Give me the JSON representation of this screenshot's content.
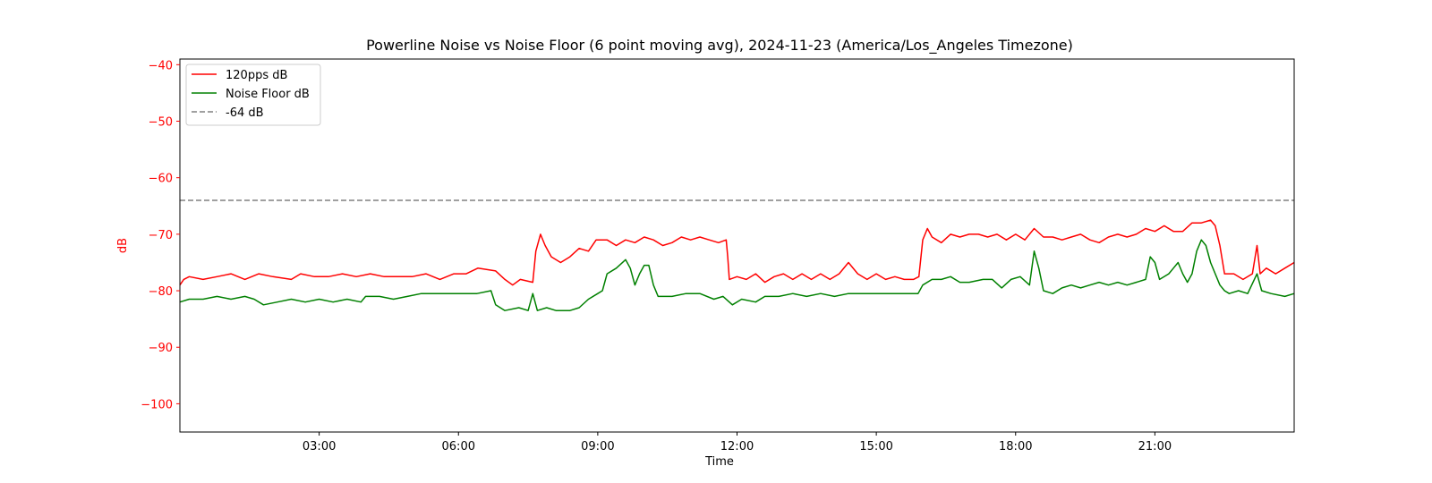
{
  "chart_data": {
    "type": "line",
    "title": "Powerline Noise vs Noise Floor (6 point moving avg), 2024-11-23 (America/Los_Angeles Timezone)",
    "xlabel": "Time",
    "ylabel": "dB",
    "x_unit": "time of day (HH:MM)",
    "xlim": [
      "00:00",
      "24:00"
    ],
    "ylim": [
      -105,
      -39
    ],
    "x_ticks": [
      "03:00",
      "06:00",
      "09:00",
      "12:00",
      "15:00",
      "18:00",
      "21:00"
    ],
    "y_ticks": [
      -40,
      -50,
      -60,
      -70,
      -80,
      -90,
      -100
    ],
    "grid": false,
    "legend_position": "top-left",
    "colors": {
      "red_series": "#ff0000",
      "green_series": "#008000",
      "reference": "#808080",
      "axis_text": "#ff0000"
    },
    "reference_line": {
      "name": "-64 dB",
      "y": -64,
      "style": "dashed"
    },
    "series": [
      {
        "name": "120pps dB",
        "color": "#ff0000",
        "points": [
          [
            "00:00",
            -79
          ],
          [
            "00:05",
            -78
          ],
          [
            "00:12",
            -77.5
          ],
          [
            "00:30",
            -78
          ],
          [
            "00:48",
            -77.5
          ],
          [
            "01:06",
            -77
          ],
          [
            "01:24",
            -78
          ],
          [
            "01:42",
            -77
          ],
          [
            "02:00",
            -77.5
          ],
          [
            "02:24",
            -78
          ],
          [
            "02:36",
            -77
          ],
          [
            "02:54",
            -77.5
          ],
          [
            "03:12",
            -77.5
          ],
          [
            "03:30",
            -77
          ],
          [
            "03:48",
            -77.5
          ],
          [
            "04:06",
            -77
          ],
          [
            "04:24",
            -77.5
          ],
          [
            "04:42",
            -77.5
          ],
          [
            "05:00",
            -77.5
          ],
          [
            "05:18",
            -77
          ],
          [
            "05:36",
            -78
          ],
          [
            "05:54",
            -77
          ],
          [
            "06:10",
            -77
          ],
          [
            "06:25",
            -76
          ],
          [
            "06:48",
            -76.5
          ],
          [
            "07:00",
            -78
          ],
          [
            "07:10",
            -79
          ],
          [
            "07:20",
            -78
          ],
          [
            "07:36",
            -78.5
          ],
          [
            "07:40",
            -73
          ],
          [
            "07:46",
            -70
          ],
          [
            "07:52",
            -72
          ],
          [
            "08:00",
            -74
          ],
          [
            "08:12",
            -75
          ],
          [
            "08:24",
            -74
          ],
          [
            "08:36",
            -72.5
          ],
          [
            "08:48",
            -73
          ],
          [
            "08:58",
            -71
          ],
          [
            "09:12",
            -71
          ],
          [
            "09:24",
            -72
          ],
          [
            "09:36",
            -71
          ],
          [
            "09:48",
            -71.5
          ],
          [
            "10:00",
            -70.5
          ],
          [
            "10:12",
            -71
          ],
          [
            "10:24",
            -72
          ],
          [
            "10:36",
            -71.5
          ],
          [
            "10:48",
            -70.5
          ],
          [
            "11:00",
            -71
          ],
          [
            "11:12",
            -70.5
          ],
          [
            "11:24",
            -71
          ],
          [
            "11:36",
            -71.5
          ],
          [
            "11:46",
            -71
          ],
          [
            "11:48",
            -74
          ],
          [
            "11:50",
            -78
          ],
          [
            "12:00",
            -77.5
          ],
          [
            "12:12",
            -78
          ],
          [
            "12:24",
            -77
          ],
          [
            "12:36",
            -78.5
          ],
          [
            "12:48",
            -77.5
          ],
          [
            "13:00",
            -77
          ],
          [
            "13:12",
            -78
          ],
          [
            "13:24",
            -77
          ],
          [
            "13:36",
            -78
          ],
          [
            "13:48",
            -77
          ],
          [
            "14:00",
            -78
          ],
          [
            "14:12",
            -77
          ],
          [
            "14:24",
            -75
          ],
          [
            "14:36",
            -77
          ],
          [
            "14:48",
            -78
          ],
          [
            "15:00",
            -77
          ],
          [
            "15:12",
            -78
          ],
          [
            "15:24",
            -77.5
          ],
          [
            "15:36",
            -78
          ],
          [
            "15:48",
            -78
          ],
          [
            "15:55",
            -77.5
          ],
          [
            "16:00",
            -71
          ],
          [
            "16:06",
            -69
          ],
          [
            "16:12",
            -70.5
          ],
          [
            "16:24",
            -71.5
          ],
          [
            "16:36",
            -70
          ],
          [
            "16:48",
            -70.5
          ],
          [
            "17:00",
            -70
          ],
          [
            "17:12",
            -70
          ],
          [
            "17:24",
            -70.5
          ],
          [
            "17:36",
            -70
          ],
          [
            "17:48",
            -71
          ],
          [
            "18:00",
            -70
          ],
          [
            "18:12",
            -71
          ],
          [
            "18:24",
            -69
          ],
          [
            "18:36",
            -70.5
          ],
          [
            "18:48",
            -70.5
          ],
          [
            "19:00",
            -71
          ],
          [
            "19:12",
            -70.5
          ],
          [
            "19:24",
            -70
          ],
          [
            "19:36",
            -71
          ],
          [
            "19:48",
            -71.5
          ],
          [
            "20:00",
            -70.5
          ],
          [
            "20:12",
            -70
          ],
          [
            "20:24",
            -70.5
          ],
          [
            "20:36",
            -70
          ],
          [
            "20:48",
            -69
          ],
          [
            "21:00",
            -69.5
          ],
          [
            "21:12",
            -68.5
          ],
          [
            "21:24",
            -69.5
          ],
          [
            "21:36",
            -69.5
          ],
          [
            "21:48",
            -68
          ],
          [
            "22:00",
            -68
          ],
          [
            "22:12",
            -67.5
          ],
          [
            "22:18",
            -68.5
          ],
          [
            "22:24",
            -72
          ],
          [
            "22:30",
            -77
          ],
          [
            "22:42",
            -77
          ],
          [
            "22:54",
            -78
          ],
          [
            "23:06",
            -77
          ],
          [
            "23:12",
            -72
          ],
          [
            "23:16",
            -77
          ],
          [
            "23:24",
            -76
          ],
          [
            "23:36",
            -77
          ],
          [
            "23:48",
            -76
          ],
          [
            "24:00",
            -75
          ]
        ]
      },
      {
        "name": "Noise Floor dB",
        "color": "#008000",
        "points": [
          [
            "00:00",
            -82
          ],
          [
            "00:12",
            -81.5
          ],
          [
            "00:30",
            -81.5
          ],
          [
            "00:48",
            -81
          ],
          [
            "01:06",
            -81.5
          ],
          [
            "01:24",
            -81
          ],
          [
            "01:36",
            -81.5
          ],
          [
            "01:48",
            -82.5
          ],
          [
            "02:06",
            -82
          ],
          [
            "02:24",
            -81.5
          ],
          [
            "02:42",
            -82
          ],
          [
            "03:00",
            -81.5
          ],
          [
            "03:18",
            -82
          ],
          [
            "03:36",
            -81.5
          ],
          [
            "03:54",
            -82
          ],
          [
            "04:00",
            -81
          ],
          [
            "04:18",
            -81
          ],
          [
            "04:36",
            -81.5
          ],
          [
            "04:54",
            -81
          ],
          [
            "05:12",
            -80.5
          ],
          [
            "05:30",
            -80.5
          ],
          [
            "05:48",
            -80.5
          ],
          [
            "06:06",
            -80.5
          ],
          [
            "06:24",
            -80.5
          ],
          [
            "06:42",
            -80
          ],
          [
            "06:48",
            -82.5
          ],
          [
            "07:00",
            -83.5
          ],
          [
            "07:18",
            -83
          ],
          [
            "07:30",
            -83.5
          ],
          [
            "07:36",
            -80.5
          ],
          [
            "07:42",
            -83.5
          ],
          [
            "07:54",
            -83
          ],
          [
            "08:06",
            -83.5
          ],
          [
            "08:24",
            -83.5
          ],
          [
            "08:36",
            -83
          ],
          [
            "08:48",
            -81.5
          ],
          [
            "09:00",
            -80.5
          ],
          [
            "09:06",
            -80
          ],
          [
            "09:12",
            -77
          ],
          [
            "09:24",
            -76
          ],
          [
            "09:36",
            -74.5
          ],
          [
            "09:42",
            -76
          ],
          [
            "09:48",
            -79
          ],
          [
            "09:54",
            -77
          ],
          [
            "10:00",
            -75.5
          ],
          [
            "10:06",
            -75.5
          ],
          [
            "10:12",
            -79
          ],
          [
            "10:18",
            -81
          ],
          [
            "10:36",
            -81
          ],
          [
            "10:54",
            -80.5
          ],
          [
            "11:12",
            -80.5
          ],
          [
            "11:30",
            -81.5
          ],
          [
            "11:42",
            -81
          ],
          [
            "11:54",
            -82.5
          ],
          [
            "12:06",
            -81.5
          ],
          [
            "12:24",
            -82
          ],
          [
            "12:36",
            -81
          ],
          [
            "12:54",
            -81
          ],
          [
            "13:12",
            -80.5
          ],
          [
            "13:30",
            -81
          ],
          [
            "13:48",
            -80.5
          ],
          [
            "14:06",
            -81
          ],
          [
            "14:24",
            -80.5
          ],
          [
            "14:42",
            -80.5
          ],
          [
            "15:00",
            -80.5
          ],
          [
            "15:18",
            -80.5
          ],
          [
            "15:36",
            -80.5
          ],
          [
            "15:54",
            -80.5
          ],
          [
            "16:00",
            -79
          ],
          [
            "16:12",
            -78
          ],
          [
            "16:24",
            -78
          ],
          [
            "16:36",
            -77.5
          ],
          [
            "16:48",
            -78.5
          ],
          [
            "17:00",
            -78.5
          ],
          [
            "17:18",
            -78
          ],
          [
            "17:30",
            -78
          ],
          [
            "17:42",
            -79.5
          ],
          [
            "17:54",
            -78
          ],
          [
            "18:06",
            -77.5
          ],
          [
            "18:18",
            -79
          ],
          [
            "18:24",
            -73
          ],
          [
            "18:30",
            -76
          ],
          [
            "18:36",
            -80
          ],
          [
            "18:48",
            -80.5
          ],
          [
            "19:00",
            -79.5
          ],
          [
            "19:12",
            -79
          ],
          [
            "19:24",
            -79.5
          ],
          [
            "19:36",
            -79
          ],
          [
            "19:48",
            -78.5
          ],
          [
            "20:00",
            -79
          ],
          [
            "20:12",
            -78.5
          ],
          [
            "20:24",
            -79
          ],
          [
            "20:36",
            -78.5
          ],
          [
            "20:48",
            -78
          ],
          [
            "20:54",
            -74
          ],
          [
            "21:00",
            -75
          ],
          [
            "21:06",
            -78
          ],
          [
            "21:18",
            -77
          ],
          [
            "21:24",
            -76
          ],
          [
            "21:30",
            -75
          ],
          [
            "21:36",
            -77
          ],
          [
            "21:42",
            -78.5
          ],
          [
            "21:48",
            -77
          ],
          [
            "21:54",
            -73
          ],
          [
            "22:00",
            -71
          ],
          [
            "22:06",
            -72
          ],
          [
            "22:12",
            -75
          ],
          [
            "22:24",
            -79
          ],
          [
            "22:30",
            -80
          ],
          [
            "22:36",
            -80.5
          ],
          [
            "22:48",
            -80
          ],
          [
            "23:00",
            -80.5
          ],
          [
            "23:12",
            -77
          ],
          [
            "23:18",
            -80
          ],
          [
            "23:30",
            -80.5
          ],
          [
            "23:48",
            -81
          ],
          [
            "24:00",
            -80.5
          ]
        ]
      }
    ]
  }
}
